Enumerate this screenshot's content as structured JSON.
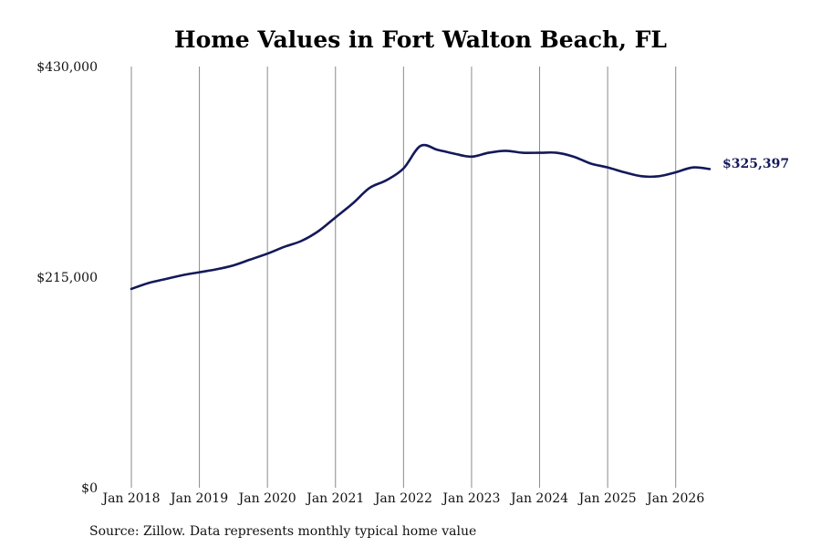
{
  "chart_data": {
    "type": "line",
    "title": "Home Values in Fort Walton Beach, FL",
    "xlabel": "",
    "ylabel": "",
    "ylim": [
      0,
      430000
    ],
    "yticks": [
      {
        "value": 0,
        "label": "$0"
      },
      {
        "value": 215000,
        "label": "$215,000"
      },
      {
        "value": 430000,
        "label": "$430,000"
      }
    ],
    "xlim": [
      "2018-01",
      "2026-07"
    ],
    "xticks": [
      {
        "date": "2018-01",
        "label": "Jan 2018"
      },
      {
        "date": "2019-01",
        "label": "Jan 2019"
      },
      {
        "date": "2020-01",
        "label": "Jan 2020"
      },
      {
        "date": "2021-01",
        "label": "Jan 2021"
      },
      {
        "date": "2022-01",
        "label": "Jan 2022"
      },
      {
        "date": "2023-01",
        "label": "Jan 2023"
      },
      {
        "date": "2024-01",
        "label": "Jan 2024"
      },
      {
        "date": "2025-01",
        "label": "Jan 2025"
      },
      {
        "date": "2026-01",
        "label": "Jan 2026"
      }
    ],
    "grid": {
      "vertical": true,
      "horizontal": false
    },
    "line_color": "#14195a",
    "series": [
      {
        "x": [
          "2018-01",
          "2018-04",
          "2018-07",
          "2018-10",
          "2019-01",
          "2019-04",
          "2019-07",
          "2019-10",
          "2020-01",
          "2020-04",
          "2020-07",
          "2020-10",
          "2021-01",
          "2021-04",
          "2021-07",
          "2021-10",
          "2022-01",
          "2022-04",
          "2022-07",
          "2022-10",
          "2023-01",
          "2023-04",
          "2023-07",
          "2023-10",
          "2024-01",
          "2024-04",
          "2024-07",
          "2024-10",
          "2025-01",
          "2025-04",
          "2025-07",
          "2025-10",
          "2026-01",
          "2026-04",
          "2026-07"
        ],
        "values": [
          203000,
          209000,
          213000,
          217000,
          220000,
          223000,
          227000,
          233000,
          239000,
          246000,
          252000,
          262000,
          276000,
          290000,
          306000,
          314000,
          326000,
          349000,
          345000,
          341000,
          338000,
          342000,
          344000,
          342000,
          342000,
          342000,
          338000,
          331000,
          327000,
          322000,
          318000,
          318000,
          322000,
          327000,
          325397
        ]
      }
    ],
    "end_label": "$325,397"
  },
  "source_note": "Source: Zillow. Data represents monthly typical home value"
}
